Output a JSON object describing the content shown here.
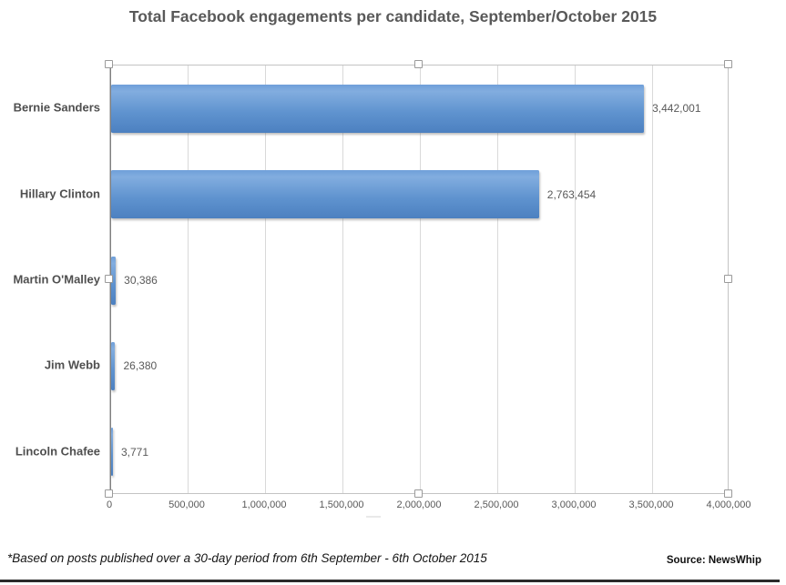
{
  "chart_data": {
    "type": "bar",
    "orientation": "horizontal",
    "title": "Total Facebook engagements per candidate, September/October 2015",
    "categories": [
      "Bernie Sanders",
      "Hillary Clinton",
      "Martin O'Malley",
      "Jim Webb",
      "Lincoln Chafee"
    ],
    "values": [
      3442001,
      2763454,
      30386,
      26380,
      3771
    ],
    "value_labels": [
      "3,442,001",
      "2,763,454",
      "30,386",
      "26,380",
      "3,771"
    ],
    "xlabel": "",
    "ylabel": "",
    "xlim": [
      0,
      4000000
    ],
    "x_ticks": [
      0,
      500000,
      1000000,
      1500000,
      2000000,
      2500000,
      3000000,
      3500000,
      4000000
    ],
    "x_tick_labels": [
      "0",
      "500,000",
      "1,000,000",
      "1,500,000",
      "2,000,000",
      "2,500,000",
      "3,000,000",
      "3,500,000",
      "4,000,000"
    ],
    "grid": "vertical-gridlines-on",
    "legend": "none",
    "bar_color": "#5b91cb",
    "selection_state": "plot-area-selected-with-handles"
  },
  "footer": {
    "note": "*Based on posts published over a 30-day period from 6th September - 6th October 2015",
    "source": "Source: NewsWhip"
  },
  "colors": {
    "bar_fill": "#5b91cb",
    "bar_fill_light": "#82addf",
    "bar_fill_dark": "#4c80c0",
    "axis_line": "#7f7f7f",
    "gridline": "#d9d9d9",
    "plot_border": "#c3c3c3",
    "title_text": "#595959",
    "tick_text": "#595959",
    "footer_bar": "#2b2b2b"
  }
}
